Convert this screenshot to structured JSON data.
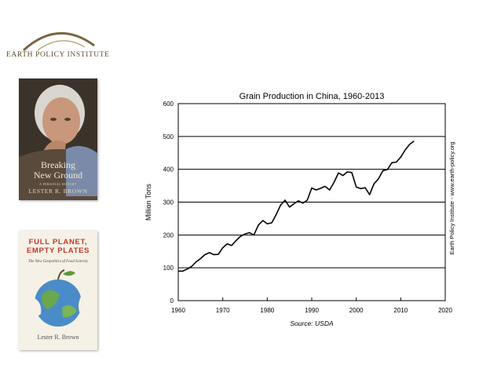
{
  "branding": {
    "logo_text": "EARTH POLICY INSTITUTE",
    "side_credit": "Earth Policy Institute - www.earth-policy.org"
  },
  "books": [
    {
      "title_line1": "Breaking",
      "title_line2": "New Ground",
      "subtitle": "A PERSONAL HISTORY",
      "author": "LESTER R. BROWN"
    },
    {
      "title_line1": "FULL PLANET,",
      "title_line2": "EMPTY PLATES",
      "subtitle": "The New Geopolitics of Food Scarcity",
      "author": "Lester R. Brown"
    }
  ],
  "chart_data": {
    "type": "line",
    "title": "Grain Production in China, 1960-2013",
    "ylabel": "Million Tons",
    "xlabel": "",
    "source": "Source: USDA",
    "xlim": [
      1960,
      2020
    ],
    "ylim": [
      0,
      600
    ],
    "xticks": [
      1960,
      1970,
      1980,
      1990,
      2000,
      2010,
      2020
    ],
    "yticks": [
      0,
      100,
      200,
      300,
      400,
      500,
      600
    ],
    "grid": "horizontal",
    "series_color": "#000000",
    "series": [
      {
        "x": [
          1960,
          1961,
          1962,
          1963,
          1964,
          1965,
          1966,
          1967,
          1968,
          1969,
          1970,
          1971,
          1972,
          1973,
          1974,
          1975,
          1976,
          1977,
          1978,
          1979,
          1980,
          1981,
          1982,
          1983,
          1984,
          1985,
          1986,
          1987,
          1988,
          1989,
          1990,
          1991,
          1992,
          1993,
          1994,
          1995,
          1996,
          1997,
          1998,
          1999,
          2000,
          2001,
          2002,
          2003,
          2004,
          2005,
          2006,
          2007,
          2008,
          2009,
          2010,
          2011,
          2012,
          2013
        ],
        "y": [
          90,
          90,
          96,
          104,
          118,
          128,
          140,
          146,
          140,
          141,
          161,
          173,
          168,
          183,
          196,
          203,
          207,
          200,
          230,
          244,
          234,
          237,
          262,
          291,
          306,
          285,
          295,
          304,
          297,
          306,
          343,
          337,
          342,
          348,
          337,
          360,
          389,
          381,
          392,
          390,
          346,
          341,
          344,
          323,
          356,
          371,
          396,
          399,
          420,
          422,
          437,
          459,
          476,
          486
        ]
      }
    ]
  }
}
